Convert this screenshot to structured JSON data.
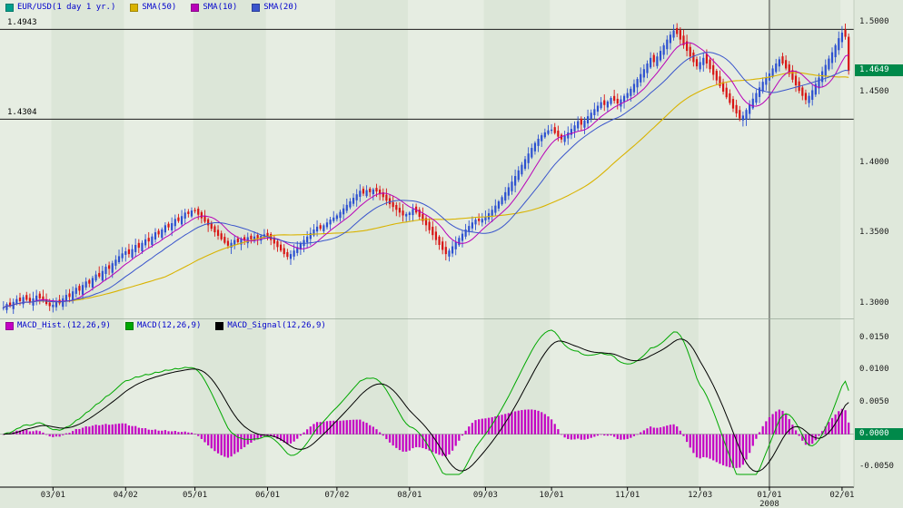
{
  "legend_main": {
    "series": [
      {
        "label": "EUR/USD(1 day 1 yr.)",
        "color": "#00a08c"
      },
      {
        "label": "SMA(50)",
        "color": "#d9b300"
      },
      {
        "label": "SMA(10)",
        "color": "#b800b8"
      },
      {
        "label": "SMA(20)",
        "color": "#3a55cc"
      }
    ]
  },
  "legend_macd": {
    "series": [
      {
        "label": "MACD_Hist.(12,26,9)",
        "color": "#c400c4"
      },
      {
        "label": "MACD(12,26,9)",
        "color": "#00a800"
      },
      {
        "label": "MACD_Signal(12,26,9)",
        "color": "#000000"
      }
    ]
  },
  "chart_data": {
    "type": "candlestick",
    "title": "EUR/USD(1 day 1 yr.)",
    "panels": [
      "price",
      "macd"
    ],
    "indicators": {
      "sma_periods": [
        50,
        10,
        20
      ],
      "macd_params": [
        12,
        26,
        9
      ]
    },
    "price_axis": {
      "ticks": [
        "1.5000",
        "1.4500",
        "1.4000",
        "1.3500",
        "1.3000"
      ],
      "current": "1.4649",
      "range": [
        1.292,
        1.51
      ]
    },
    "macd_axis": {
      "ticks": [
        "0.0150",
        "0.0100",
        "0.0050",
        "-0.0050"
      ],
      "zero": "0.0000",
      "range": [
        -0.0062,
        0.0162
      ]
    },
    "annotations": {
      "high_line": 1.4943,
      "high_label": "1.4943",
      "support_line": 1.4304,
      "support_label": "1.4304",
      "year_line_index": 232
    },
    "x_labels": [
      {
        "label": "03/01",
        "index": 15
      },
      {
        "label": "04/02",
        "index": 37
      },
      {
        "label": "05/01",
        "index": 58
      },
      {
        "label": "06/01",
        "index": 80
      },
      {
        "label": "07/02",
        "index": 101
      },
      {
        "label": "08/01",
        "index": 123
      },
      {
        "label": "09/03",
        "index": 146
      },
      {
        "label": "10/01",
        "index": 166
      },
      {
        "label": "11/01",
        "index": 189
      },
      {
        "label": "12/03",
        "index": 211
      },
      {
        "label": "01/01",
        "index": 232,
        "sub": "2008"
      },
      {
        "label": "02/01",
        "index": 254
      }
    ],
    "month_starts": [
      0,
      15,
      37,
      58,
      80,
      101,
      123,
      146,
      166,
      189,
      211,
      232,
      254
    ],
    "colors": {
      "up": "#2c50d0",
      "down": "#d81414",
      "sma50": "#d9b300",
      "sma10": "#b800b8",
      "sma20": "#3a55cc",
      "macd_line": "#00a800",
      "macd_signal": "#000000",
      "macd_hist": "#c400c4",
      "band_a": "#e6ede2",
      "band_b": "#dce6d8",
      "flag_bg": "#00894a",
      "legend_text": "#0000cc"
    },
    "closes": [
      1.2965,
      1.299,
      1.2975,
      1.3005,
      1.3025,
      1.301,
      1.304,
      1.302,
      1.3,
      1.303,
      1.305,
      1.303,
      1.301,
      1.299,
      1.2975,
      1.2985,
      1.301,
      1.2995,
      1.303,
      1.3055,
      1.304,
      1.308,
      1.3105,
      1.3085,
      1.3125,
      1.315,
      1.3135,
      1.3175,
      1.32,
      1.3185,
      1.3225,
      1.3255,
      1.324,
      1.328,
      1.3305,
      1.333,
      1.335,
      1.3365,
      1.3345,
      1.338,
      1.341,
      1.339,
      1.3425,
      1.345,
      1.3435,
      1.347,
      1.35,
      1.3485,
      1.352,
      1.355,
      1.3535,
      1.3565,
      1.3595,
      1.358,
      1.3615,
      1.364,
      1.363,
      1.3655,
      1.365,
      1.3625,
      1.36,
      1.3575,
      1.355,
      1.3525,
      1.35,
      1.3475,
      1.345,
      1.3425,
      1.3405,
      1.3425,
      1.3445,
      1.343,
      1.3455,
      1.344,
      1.3465,
      1.345,
      1.347,
      1.3455,
      1.3475,
      1.3485,
      1.347,
      1.3445,
      1.342,
      1.3395,
      1.337,
      1.3345,
      1.3325,
      1.3345,
      1.337,
      1.3395,
      1.342,
      1.3445,
      1.347,
      1.3495,
      1.352,
      1.354,
      1.3525,
      1.355,
      1.357,
      1.359,
      1.3605,
      1.362,
      1.3645,
      1.367,
      1.3695,
      1.372,
      1.3745,
      1.377,
      1.3795,
      1.3775,
      1.38,
      1.3785,
      1.3805,
      1.379,
      1.377,
      1.375,
      1.3725,
      1.37,
      1.368,
      1.366,
      1.364,
      1.362,
      1.363,
      1.364,
      1.3665,
      1.364,
      1.361,
      1.358,
      1.355,
      1.3515,
      1.348,
      1.3445,
      1.341,
      1.3375,
      1.3345,
      1.337,
      1.34,
      1.343,
      1.346,
      1.349,
      1.352,
      1.3545,
      1.357,
      1.359,
      1.358,
      1.3595,
      1.361,
      1.3635,
      1.366,
      1.369,
      1.372,
      1.375,
      1.3785,
      1.382,
      1.386,
      1.39,
      1.394,
      1.398,
      1.402,
      1.406,
      1.41,
      1.4135,
      1.4165,
      1.419,
      1.421,
      1.4225,
      1.423,
      1.4205,
      1.418,
      1.416,
      1.4185,
      1.421,
      1.4235,
      1.426,
      1.429,
      1.4265,
      1.4295,
      1.4325,
      1.435,
      1.4375,
      1.44,
      1.4425,
      1.4405,
      1.443,
      1.4455,
      1.4435,
      1.4415,
      1.4445,
      1.447,
      1.449,
      1.452,
      1.4555,
      1.459,
      1.4625,
      1.466,
      1.47,
      1.474,
      1.471,
      1.475,
      1.479,
      1.483,
      1.487,
      1.4905,
      1.4935,
      1.491,
      1.487,
      1.483,
      1.479,
      1.475,
      1.471,
      1.468,
      1.471,
      1.474,
      1.47,
      1.466,
      1.462,
      1.458,
      1.454,
      1.45,
      1.446,
      1.442,
      1.438,
      1.4345,
      1.431,
      1.433,
      1.437,
      1.441,
      1.445,
      1.449,
      1.453,
      1.457,
      1.46,
      1.463,
      1.4665,
      1.47,
      1.473,
      1.47,
      1.4665,
      1.4625,
      1.4585,
      1.4545,
      1.4505,
      1.447,
      1.444,
      1.447,
      1.451,
      1.4555,
      1.46,
      1.4645,
      1.469,
      1.4735,
      1.478,
      1.483,
      1.488,
      1.492,
      1.489,
      1.4649
    ]
  }
}
